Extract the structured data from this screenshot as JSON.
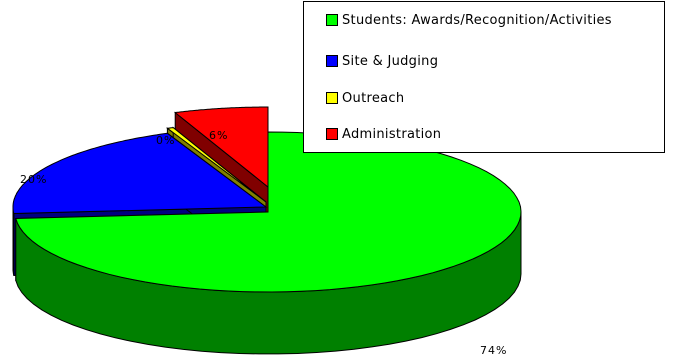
{
  "chart_data": {
    "type": "pie",
    "title": "",
    "three_d": true,
    "exploded": true,
    "legend_placement": "top-right",
    "slices": [
      {
        "label": "Students: Awards/Recognition/Activities",
        "value": 74,
        "display": "74%",
        "color": "#00ff00",
        "side_color": "#008000"
      },
      {
        "label": "Site & Judging",
        "value": 20,
        "display": "20%",
        "color": "#0000ff",
        "side_color": "#000080"
      },
      {
        "label": "Outreach",
        "value": 0.4,
        "display": "0%",
        "color": "#ffff00",
        "side_color": "#808000"
      },
      {
        "label": "Administration",
        "value": 6,
        "display": "6%",
        "color": "#ff0000",
        "side_color": "#800000"
      }
    ]
  }
}
